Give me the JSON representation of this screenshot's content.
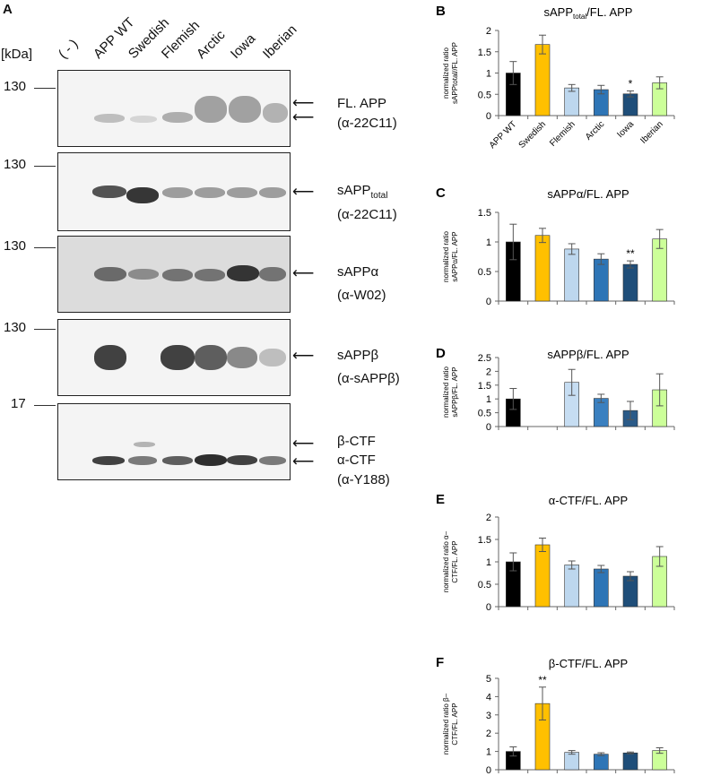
{
  "panel_a": {
    "letter": "A",
    "kda_label": "[kDa]",
    "lanes": [
      "( - )",
      "APP WT",
      "Swedish",
      "Flemish",
      "Arctic",
      "Iowa",
      "Iberian"
    ],
    "markers": [
      "130",
      "130",
      "130",
      "130",
      "17"
    ],
    "blots": [
      {
        "label_main": "FL. APP",
        "label_sub": "",
        "label_after": "",
        "antibody": "(α-22C11)"
      },
      {
        "label_main": "sAPP",
        "label_sub": "total",
        "label_after": "",
        "antibody": "(α-22C11)"
      },
      {
        "label_main": "sAPPα",
        "label_sub": "",
        "label_after": "",
        "antibody": "(α-W02)"
      },
      {
        "label_main": "sAPPβ",
        "label_sub": "",
        "label_after": "",
        "antibody": "(α-sAPPβ)"
      },
      {
        "label_main": "β-CTF",
        "label_sub": "",
        "label_after": "α-CTF",
        "antibody": "(α-Y188)"
      }
    ]
  },
  "chart_data": [
    {
      "panel": "B",
      "type": "bar",
      "title_main": "sAPP",
      "title_sub": "total",
      "title_after": "/FL. APP",
      "ylabel_lines": [
        "normalized ratio",
        "sAPPtotal//FL. APP"
      ],
      "categories": [
        "APP WT",
        "Swedish",
        "Flemish",
        "Arctic",
        "Iowa",
        "Iberian"
      ],
      "values": [
        1.0,
        1.67,
        0.65,
        0.61,
        0.51,
        0.77
      ],
      "errors": [
        0.27,
        0.22,
        0.08,
        0.1,
        0.07,
        0.14
      ],
      "significance": [
        "",
        "",
        "",
        "",
        "*",
        ""
      ],
      "ylim": [
        0,
        2
      ],
      "yticks": [
        "0",
        "0.5",
        "1",
        "1.5",
        "2"
      ],
      "show_xlabels": true
    },
    {
      "panel": "C",
      "type": "bar",
      "title_main": "sAPPα/FL. APP",
      "title_sub": "",
      "title_after": "",
      "ylabel_lines": [
        "normalized ratio",
        "sAPPα/FL. APP"
      ],
      "categories": [
        "APP WT",
        "Swedish",
        "Flemish",
        "Arctic",
        "Iowa",
        "Iberian"
      ],
      "values": [
        1.0,
        1.11,
        0.88,
        0.71,
        0.62,
        1.05
      ],
      "errors": [
        0.3,
        0.12,
        0.09,
        0.09,
        0.06,
        0.16
      ],
      "significance": [
        "",
        "",
        "",
        "",
        "**",
        ""
      ],
      "ylim": [
        0,
        1.5
      ],
      "yticks": [
        "0",
        "0.5",
        "1",
        "1.5"
      ],
      "show_xlabels": false
    },
    {
      "panel": "D",
      "type": "bar",
      "title_main": "sAPPβ/FL. APP",
      "title_sub": "",
      "title_after": "",
      "ylabel_lines": [
        "normalized ratio",
        "sAPPβ/FL. APP"
      ],
      "categories": [
        "APP WT",
        "Swedish",
        "Flemish",
        "Arctic",
        "Iowa",
        "Iberian"
      ],
      "values": [
        1.0,
        0,
        1.6,
        1.02,
        0.58,
        1.33
      ],
      "errors": [
        0.38,
        0,
        0.47,
        0.15,
        0.33,
        0.58
      ],
      "significance": [
        "",
        "",
        "",
        "",
        "",
        ""
      ],
      "ylim": [
        0,
        2.5
      ],
      "yticks": [
        "0",
        "0.5",
        "1",
        "1.5",
        "2",
        "2.5"
      ],
      "show_xlabels": false
    },
    {
      "panel": "E",
      "type": "bar",
      "title_main": "α-CTF/FL. APP",
      "title_sub": "",
      "title_after": "",
      "ylabel_lines": [
        "normalized ratio α–",
        "CTF/FL. APP"
      ],
      "categories": [
        "APP WT",
        "Swedish",
        "Flemish",
        "Arctic",
        "Iowa",
        "Iberian"
      ],
      "values": [
        1.0,
        1.38,
        0.93,
        0.84,
        0.68,
        1.12
      ],
      "errors": [
        0.2,
        0.15,
        0.09,
        0.08,
        0.1,
        0.22
      ],
      "significance": [
        "",
        "",
        "",
        "",
        "",
        ""
      ],
      "ylim": [
        0,
        2
      ],
      "yticks": [
        "0",
        "0.5",
        "1",
        "1.5",
        "2"
      ],
      "show_xlabels": false
    },
    {
      "panel": "F",
      "type": "bar",
      "title_main": "β-CTF/FL. APP",
      "title_sub": "",
      "title_after": "",
      "ylabel_lines": [
        "normalized ratio β–",
        "CTF/FL. APP"
      ],
      "categories": [
        "APP WT",
        "Swedish",
        "Flemish",
        "Arctic",
        "Iowa",
        "Iberian"
      ],
      "values": [
        1.0,
        3.62,
        0.95,
        0.85,
        0.92,
        1.05
      ],
      "errors": [
        0.25,
        0.9,
        0.1,
        0.08,
        0.05,
        0.15
      ],
      "significance": [
        "",
        "**",
        "",
        "",
        "",
        ""
      ],
      "ylim": [
        0,
        5
      ],
      "yticks": [
        "0",
        "1",
        "2",
        "3",
        "4",
        "5"
      ],
      "show_xlabels": false
    }
  ],
  "colors": {
    "bars": [
      "#000000",
      "#ffc000",
      "#bdd7ee",
      "#2e75b6",
      "#1f4e79",
      "#ccff99"
    ],
    "bars_d": [
      "#000000",
      "#ffc000",
      "#c6ddf2",
      "#3a80c0",
      "#2a5a88",
      "#ccff99"
    ]
  }
}
